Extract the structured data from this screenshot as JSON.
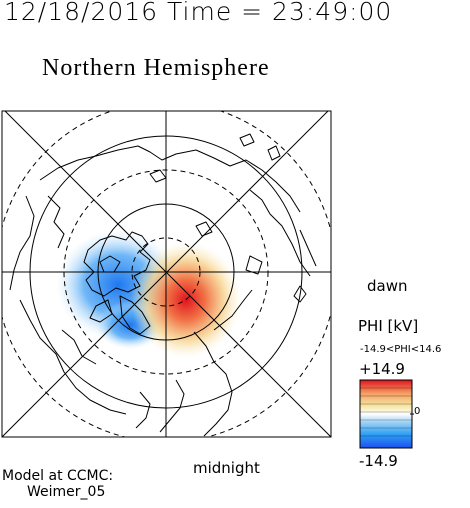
{
  "header": {
    "datetime": "12/18/2016 Time = 23:49:00",
    "title": "Northern Hemisphere"
  },
  "map": {
    "projection": "polar view, magnetic local time",
    "background_color": "#ffffff",
    "graticule_color": "#000000",
    "coastline_color": "#000000",
    "labels": {
      "dawn": "dawn",
      "midnight": "midnight"
    },
    "potential_features": [
      {
        "sign": "negative",
        "color": "#1e78f0"
      },
      {
        "sign": "positive",
        "color": "#e0141e"
      }
    ]
  },
  "colorbar": {
    "label": "PHI [kV]",
    "range_text": "-14.9<PHI<14.6",
    "max_label": "+14.9",
    "min_label": "-14.9",
    "zero_label": "0",
    "colors": [
      "#1e50f0",
      "#2da0f5",
      "#a0d2f5",
      "#ffffff",
      "#f5e6a0",
      "#f5a064",
      "#e0141e"
    ]
  },
  "footer": {
    "model_line1": "Model at CCMC:",
    "model_line2": "Weimer_05"
  }
}
